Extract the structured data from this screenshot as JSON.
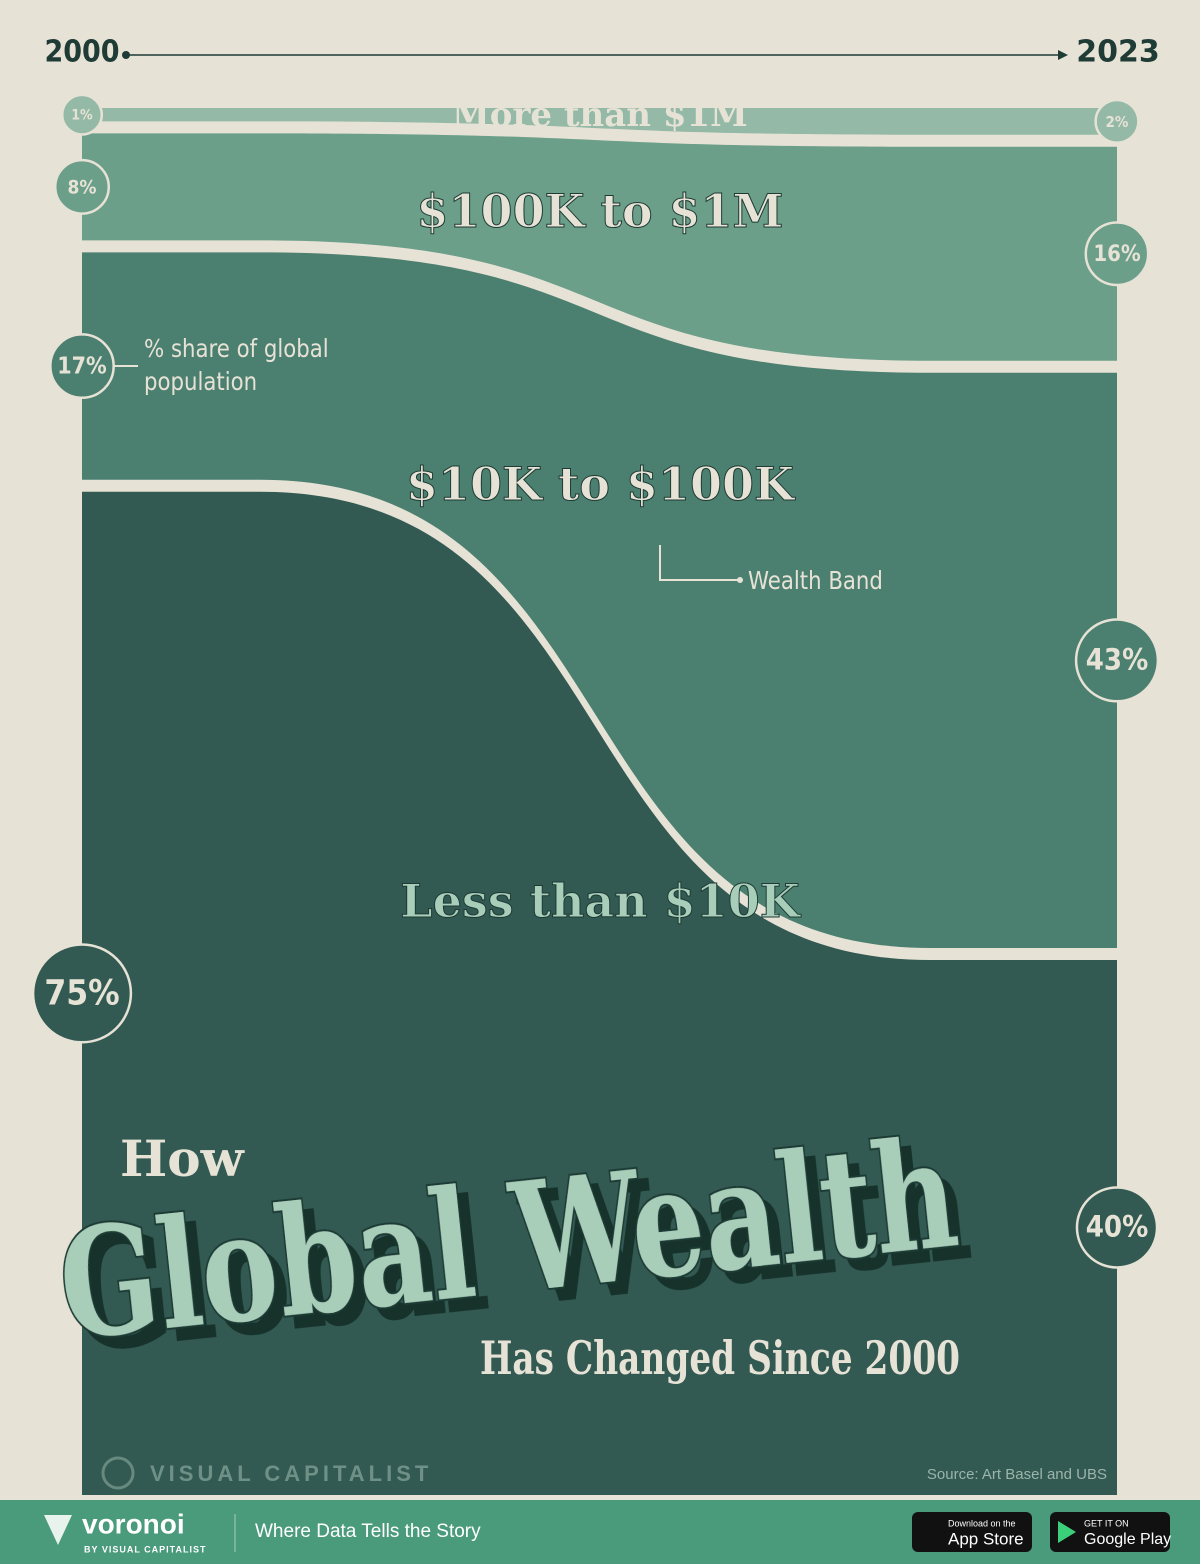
{
  "chart_data": {
    "type": "area",
    "title_parts": [
      "How",
      "Global Wealth",
      "Has Changed Since 2000"
    ],
    "categories": [
      "2000",
      "2023"
    ],
    "series": [
      {
        "name": "Less than $10K",
        "color": "#325a52",
        "values": [
          75,
          40
        ],
        "value_labels": [
          "75%",
          "40%"
        ]
      },
      {
        "name": "$10K to $100K",
        "color": "#4b8070",
        "values": [
          17,
          43
        ],
        "value_labels": [
          "17%",
          "43%"
        ]
      },
      {
        "name": "$100K to $1M",
        "color": "#6b9f89",
        "values": [
          8,
          16
        ],
        "value_labels": [
          "8%",
          "16%"
        ]
      },
      {
        "name": "More than $1M",
        "color": "#94b9a6",
        "values": [
          1,
          2
        ],
        "value_labels": [
          "1%",
          "2%"
        ]
      }
    ],
    "annotations": [
      "% share of global population",
      "Wealth Band"
    ],
    "source": "Source: Art Basel and UBS",
    "brand": "VISUAL CAPITALIST",
    "footer": {
      "logo": "voronoi",
      "logo_sub": "BY VISUAL CAPITALIST",
      "tagline": "Where Data Tells the Story",
      "app_store": [
        "Download on the",
        "App Store"
      ],
      "google_play": [
        "GET IT ON",
        "Google Play"
      ]
    }
  }
}
